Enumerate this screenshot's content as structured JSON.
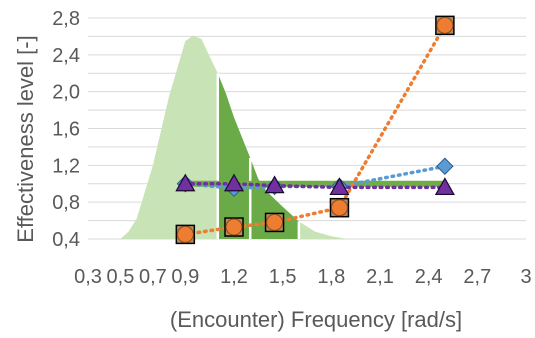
{
  "chart_data": {
    "type": "line",
    "xlabel": "(Encounter) Frequency [rad/s]",
    "ylabel": "Effectiveness level [-]",
    "xlim": [
      0.3,
      3.0
    ],
    "ylim": [
      0.4,
      2.8
    ],
    "x_ticks": [
      "0,3",
      "0,5",
      "0,7",
      "0,9",
      "1,2",
      "1,5",
      "1,8",
      "2,1",
      "2,4",
      "2,7",
      "3"
    ],
    "x_tick_values": [
      0.3,
      0.5,
      0.7,
      0.9,
      1.2,
      1.5,
      1.8,
      2.1,
      2.4,
      2.7,
      3.0
    ],
    "y_ticks": [
      "0,4",
      "0,8",
      "1,2",
      "1,6",
      "2,0",
      "2,4",
      "2,8"
    ],
    "y_tick_values": [
      0.4,
      0.8,
      1.2,
      1.6,
      2.0,
      2.4,
      2.8
    ],
    "grid": true,
    "spectrum": {
      "x": [
        0.5,
        0.55,
        0.6,
        0.7,
        0.8,
        0.9,
        0.95,
        1.0,
        1.05,
        1.1,
        1.15,
        1.2,
        1.25,
        1.3,
        1.35,
        1.4,
        1.5,
        1.6,
        1.7,
        1.8,
        1.9
      ],
      "y": [
        0.4,
        0.48,
        0.62,
        1.2,
        1.95,
        2.55,
        2.61,
        2.57,
        2.38,
        2.2,
        1.98,
        1.72,
        1.5,
        1.28,
        1.05,
        0.92,
        0.75,
        0.59,
        0.48,
        0.43,
        0.4
      ],
      "dark_range": [
        1.1,
        1.6
      ],
      "colors": {
        "light": "#c8e3b5",
        "dark": "#6aab47",
        "divider": "#ffffff"
      }
    },
    "series": [
      {
        "values": [
          1.0,
          1.0,
          1.0,
          1.0,
          1.0
        ],
        "x": [
          0.9,
          1.2,
          1.45,
          1.85,
          2.5
        ],
        "color": "#70ad47",
        "line": "solid",
        "marker": "none"
      },
      {
        "values": [
          1.0,
          0.95,
          0.97,
          0.97,
          1.19
        ],
        "x": [
          0.9,
          1.2,
          1.45,
          1.85,
          2.5
        ],
        "color": "#5b9bd5",
        "line": "dotted",
        "marker": "diamond"
      },
      {
        "values": [
          0.45,
          0.53,
          0.58,
          0.74,
          2.72
        ],
        "x": [
          0.9,
          1.2,
          1.45,
          1.85,
          2.5
        ],
        "color": "#ed7d31",
        "line": "dotted",
        "marker": "circle-in-square"
      },
      {
        "values": [
          1.0,
          1.0,
          0.98,
          0.96,
          0.96
        ],
        "x": [
          0.9,
          1.2,
          1.45,
          1.85,
          2.5
        ],
        "color": "#7030a0",
        "line": "dotted",
        "marker": "triangle"
      }
    ]
  }
}
